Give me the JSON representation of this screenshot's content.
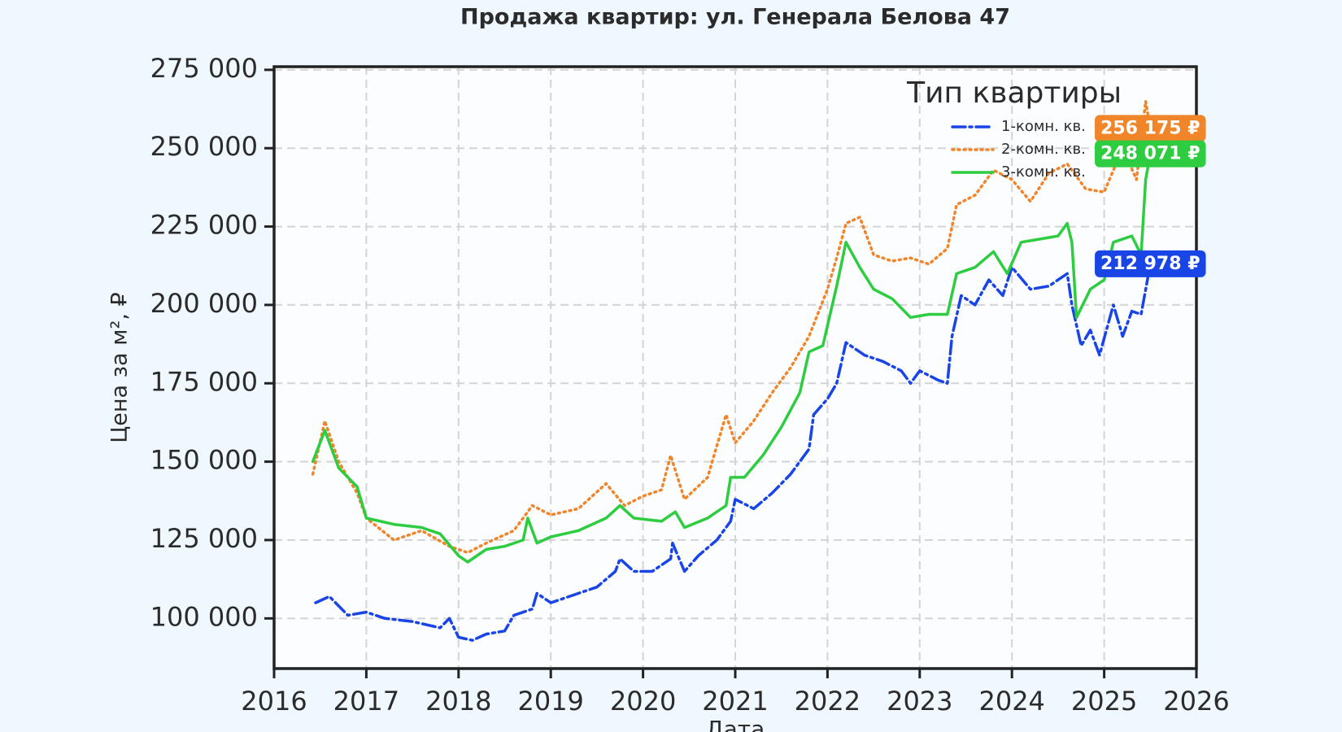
{
  "chart_data": {
    "type": "line",
    "title": "Продажа квартир: ул. Генерала Белова 47",
    "x_label": "Дата",
    "y_label": "Цена за м², ₽",
    "xlim": [
      2016,
      2026
    ],
    "xticks": [
      2016,
      2017,
      2018,
      2019,
      2020,
      2021,
      2022,
      2023,
      2024,
      2025,
      2026
    ],
    "ylim": [
      84000,
      276000
    ],
    "yticks": [
      {
        "value": 100000,
        "label": "100 000"
      },
      {
        "value": 125000,
        "label": "125 000"
      },
      {
        "value": 150000,
        "label": "150 000"
      },
      {
        "value": 175000,
        "label": "175 000"
      },
      {
        "value": 200000,
        "label": "200 000"
      },
      {
        "value": 225000,
        "label": "225 000"
      },
      {
        "value": 250000,
        "label": "250 000"
      },
      {
        "value": 275000,
        "label": "275 000"
      }
    ],
    "grid": true,
    "legend_title": "Тип квартиры",
    "legend_position": "upper right",
    "series": [
      {
        "name": "1-комн. кв.",
        "color": "#1a45e6",
        "style": "dashdot",
        "x": [
          2016.45,
          2016.6,
          2016.8,
          2017.0,
          2017.2,
          2017.5,
          2017.8,
          2017.9,
          2018.0,
          2018.15,
          2018.3,
          2018.5,
          2018.6,
          2018.8,
          2018.85,
          2019.0,
          2019.3,
          2019.5,
          2019.7,
          2019.75,
          2019.9,
          2020.1,
          2020.3,
          2020.32,
          2020.45,
          2020.6,
          2020.8,
          2020.95,
          2021.0,
          2021.2,
          2021.4,
          2021.6,
          2021.8,
          2021.85,
          2022.0,
          2022.1,
          2022.2,
          2022.4,
          2022.6,
          2022.8,
          2022.9,
          2023.0,
          2023.2,
          2023.3,
          2023.35,
          2023.45,
          2023.6,
          2023.75,
          2023.9,
          2024.0,
          2024.2,
          2024.4,
          2024.6,
          2024.65,
          2024.75,
          2024.85,
          2024.95,
          2025.1,
          2025.2,
          2025.3,
          2025.4,
          2025.5
        ],
        "values": [
          105000,
          107000,
          101000,
          102000,
          100000,
          99000,
          97000,
          100000,
          94000,
          93000,
          95000,
          96000,
          101000,
          103000,
          108000,
          105000,
          108000,
          110000,
          115000,
          119000,
          115000,
          115000,
          119000,
          124000,
          115000,
          120000,
          125000,
          131000,
          138000,
          135000,
          140000,
          146000,
          154000,
          165000,
          170000,
          175000,
          188000,
          184000,
          182000,
          179000,
          175000,
          179000,
          176000,
          175000,
          190000,
          203000,
          200000,
          208000,
          203000,
          212000,
          205000,
          206000,
          210000,
          200000,
          187000,
          192000,
          184000,
          200000,
          190000,
          198000,
          197000,
          212978
        ],
        "value_labels": [
          null,
          null,
          null,
          null,
          null,
          null,
          null,
          null,
          null,
          null,
          null,
          null,
          null,
          null,
          null,
          null,
          null,
          null,
          null,
          null,
          null,
          null,
          null,
          null,
          null,
          null,
          null,
          null,
          null,
          null,
          null,
          null,
          null,
          null,
          null,
          null,
          null,
          null,
          null,
          null,
          null,
          null,
          null,
          null,
          null,
          null,
          null,
          null,
          null,
          null,
          null,
          null,
          null,
          null,
          null,
          null,
          null,
          null,
          null,
          null,
          null,
          "212 978 ₽"
        ]
      },
      {
        "name": "2-комн. кв.",
        "color": "#f0852a",
        "style": "dotted",
        "x": [
          2016.42,
          2016.55,
          2016.7,
          2016.9,
          2017.0,
          2017.3,
          2017.6,
          2017.9,
          2018.1,
          2018.3,
          2018.6,
          2018.8,
          2019.0,
          2019.3,
          2019.6,
          2019.8,
          2020.0,
          2020.2,
          2020.3,
          2020.45,
          2020.7,
          2020.9,
          2021.0,
          2021.2,
          2021.4,
          2021.6,
          2021.8,
          2022.0,
          2022.1,
          2022.2,
          2022.35,
          2022.5,
          2022.7,
          2022.9,
          2023.1,
          2023.3,
          2023.4,
          2023.6,
          2023.8,
          2024.0,
          2024.2,
          2024.4,
          2024.6,
          2024.8,
          2025.0,
          2025.2,
          2025.35,
          2025.45,
          2025.5
        ],
        "values": [
          146000,
          163000,
          150000,
          140000,
          132000,
          125000,
          128000,
          123000,
          121000,
          124000,
          128000,
          136000,
          133000,
          135000,
          143000,
          136000,
          139000,
          141000,
          152000,
          138000,
          145000,
          165000,
          156000,
          163000,
          172000,
          180000,
          190000,
          205000,
          215000,
          226000,
          228000,
          216000,
          214000,
          215000,
          213000,
          218000,
          232000,
          235000,
          243000,
          240000,
          233000,
          242000,
          245000,
          237000,
          236000,
          250000,
          240000,
          265000,
          256175
        ],
        "value_labels": [
          null,
          null,
          null,
          null,
          null,
          null,
          null,
          null,
          null,
          null,
          null,
          null,
          null,
          null,
          null,
          null,
          null,
          null,
          null,
          null,
          null,
          null,
          null,
          null,
          null,
          null,
          null,
          null,
          null,
          null,
          null,
          null,
          null,
          null,
          null,
          null,
          null,
          null,
          null,
          null,
          null,
          null,
          null,
          null,
          null,
          null,
          null,
          null,
          "256 175 ₽"
        ]
      },
      {
        "name": "3-комн. кв.",
        "color": "#2ecc40",
        "style": "solid",
        "x": [
          2016.42,
          2016.55,
          2016.7,
          2016.9,
          2017.0,
          2017.3,
          2017.6,
          2017.8,
          2018.0,
          2018.1,
          2018.3,
          2018.5,
          2018.7,
          2018.75,
          2018.85,
          2019.0,
          2019.3,
          2019.6,
          2019.75,
          2019.9,
          2020.2,
          2020.35,
          2020.45,
          2020.7,
          2020.9,
          2020.95,
          2021.1,
          2021.3,
          2021.5,
          2021.7,
          2021.8,
          2021.95,
          2022.1,
          2022.2,
          2022.35,
          2022.5,
          2022.7,
          2022.9,
          2023.1,
          2023.3,
          2023.4,
          2023.6,
          2023.8,
          2023.95,
          2024.1,
          2024.3,
          2024.5,
          2024.6,
          2024.65,
          2024.7,
          2024.85,
          2025.0,
          2025.1,
          2025.3,
          2025.4,
          2025.45,
          2025.5
        ],
        "values": [
          150000,
          160000,
          148000,
          142000,
          132000,
          130000,
          129000,
          127000,
          120000,
          118000,
          122000,
          123000,
          125000,
          132000,
          124000,
          126000,
          128000,
          132000,
          136000,
          132000,
          131000,
          134000,
          129000,
          132000,
          136000,
          145000,
          145000,
          152000,
          161000,
          172000,
          185000,
          187000,
          206000,
          220000,
          212000,
          205000,
          202000,
          196000,
          197000,
          197000,
          210000,
          212000,
          217000,
          210000,
          220000,
          221000,
          222000,
          226000,
          220000,
          196000,
          205000,
          208000,
          220000,
          222000,
          216000,
          240000,
          248071
        ],
        "value_labels": [
          null,
          null,
          null,
          null,
          null,
          null,
          null,
          null,
          null,
          null,
          null,
          null,
          null,
          null,
          null,
          null,
          null,
          null,
          null,
          null,
          null,
          null,
          null,
          null,
          null,
          null,
          null,
          null,
          null,
          null,
          null,
          null,
          null,
          null,
          null,
          null,
          null,
          null,
          null,
          null,
          null,
          null,
          null,
          null,
          null,
          null,
          null,
          null,
          null,
          null,
          null,
          null,
          null,
          null,
          null,
          null,
          "248 071 ₽"
        ]
      }
    ]
  }
}
